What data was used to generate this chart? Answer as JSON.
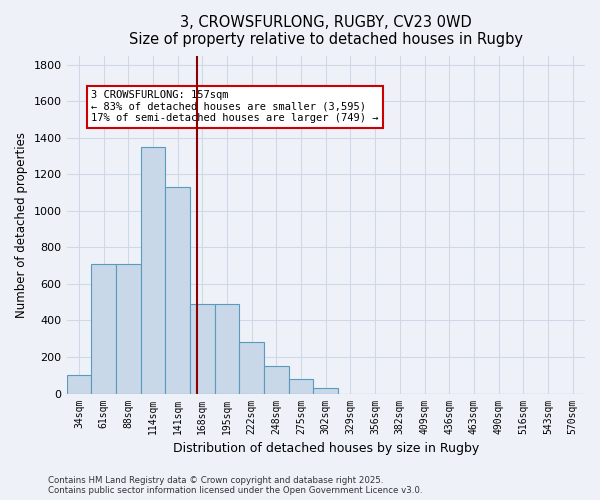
{
  "title": "3, CROWSFURLONG, RUGBY, CV23 0WD",
  "subtitle": "Size of property relative to detached houses in Rugby",
  "xlabel": "Distribution of detached houses by size in Rugby",
  "ylabel": "Number of detached properties",
  "bar_labels": [
    "34sqm",
    "61sqm",
    "88sqm",
    "114sqm",
    "141sqm",
    "168sqm",
    "195sqm",
    "222sqm",
    "248sqm",
    "275sqm",
    "302sqm",
    "329sqm",
    "356sqm",
    "382sqm",
    "409sqm",
    "436sqm",
    "463sqm",
    "490sqm",
    "516sqm",
    "543sqm",
    "570sqm"
  ],
  "bar_values": [
    100,
    710,
    710,
    1350,
    1130,
    490,
    490,
    280,
    150,
    80,
    30,
    0,
    0,
    0,
    0,
    0,
    0,
    0,
    0,
    0,
    0
  ],
  "bar_color": "#c8d8e8",
  "bar_edge_color": "#5a9abf",
  "grid_color": "#d0d8e8",
  "background_color": "#eef2f8",
  "vline_x": 4.8,
  "vline_color": "#8b0000",
  "annotation_text": "3 CROWSFURLONG: 157sqm\n← 83% of detached houses are smaller (3,595)\n17% of semi-detached houses are larger (749) →",
  "annotation_box_color": "#ffffff",
  "annotation_box_edge": "#cc0000",
  "ylim": [
    0,
    1850
  ],
  "yticks": [
    0,
    200,
    400,
    600,
    800,
    1000,
    1200,
    1400,
    1600,
    1800
  ],
  "footer_line1": "Contains HM Land Registry data © Crown copyright and database right 2025.",
  "footer_line2": "Contains public sector information licensed under the Open Government Licence v3.0."
}
